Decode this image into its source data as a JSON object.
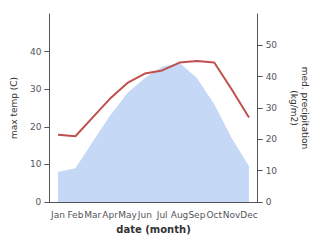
{
  "chart_data": {
    "type": "line",
    "xlabel": "date (month)",
    "ylabel": "max temp (C)",
    "y2label": "med. precipitation\n(kg/m2)",
    "categories": [
      "Jan",
      "Feb",
      "Mar",
      "Apr",
      "May",
      "Jun",
      "Jul",
      "Aug",
      "Sep",
      "Oct",
      "Nov",
      "Dec"
    ],
    "ylim": [
      0,
      50
    ],
    "yticks": [
      0,
      10,
      20,
      30,
      40
    ],
    "y2lim": [
      0,
      60
    ],
    "y2ticks": [
      0,
      10,
      20,
      30,
      40,
      50
    ],
    "grid": false,
    "series": [
      {
        "type": "area",
        "color": "#c5d8f5",
        "values": [
          8.0,
          9.0,
          16.0,
          23.0,
          29.0,
          33.0,
          36.0,
          37.0,
          33.0,
          26.0,
          17.0,
          9.5
        ]
      },
      {
        "type": "line",
        "color": "#c0504d",
        "axis": "y2",
        "values": [
          21.5,
          21.0,
          27.0,
          33.0,
          38.0,
          41.0,
          42.0,
          44.5,
          45.0,
          44.5,
          36.0,
          27.0
        ]
      }
    ]
  }
}
